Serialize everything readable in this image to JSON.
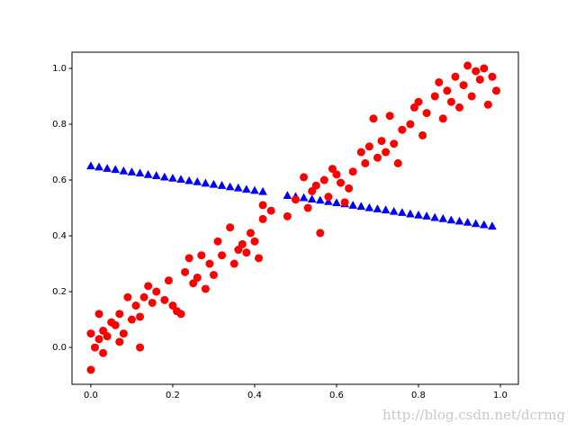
{
  "chart_data": {
    "type": "scatter",
    "annotation": "http://blog.csdn.net/dcrmg",
    "xlim": [
      -0.046,
      1.044
    ],
    "ylim": [
      -0.132,
      1.058
    ],
    "xticks": [
      {
        "value": 0,
        "label": "0.0"
      },
      0.2,
      0.4,
      0.6,
      0.8,
      {
        "value": 1,
        "label": "1.0"
      }
    ],
    "yticks": [
      {
        "value": 0,
        "label": "0.0"
      },
      0.2,
      0.4,
      0.6,
      0.8,
      {
        "value": 1,
        "label": "1.0"
      }
    ],
    "grid": false,
    "series": [
      {
        "marker": "triangle",
        "color": "#0000ff",
        "x": [
          0,
          0.02,
          0.04,
          0.06,
          0.08,
          0.1,
          0.12,
          0.14,
          0.16,
          0.18,
          0.2,
          0.22,
          0.24,
          0.26,
          0.28,
          0.3,
          0.32,
          0.34,
          0.36,
          0.38,
          0.4,
          0.42,
          0.48,
          0.5,
          0.52,
          0.54,
          0.56,
          0.58,
          0.6,
          0.62,
          0.64,
          0.66,
          0.68,
          0.7,
          0.72,
          0.74,
          0.76,
          0.78,
          0.8,
          0.82,
          0.84,
          0.86,
          0.88,
          0.9,
          0.92,
          0.94,
          0.96,
          0.98
        ],
        "values": [
          0.65,
          0.646,
          0.641,
          0.637,
          0.632,
          0.628,
          0.624,
          0.619,
          0.615,
          0.61,
          0.606,
          0.602,
          0.597,
          0.593,
          0.588,
          0.584,
          0.58,
          0.575,
          0.571,
          0.566,
          0.562,
          0.558,
          0.544,
          0.54,
          0.536,
          0.531,
          0.527,
          0.522,
          0.518,
          0.514,
          0.509,
          0.505,
          0.5,
          0.496,
          0.492,
          0.487,
          0.483,
          0.478,
          0.474,
          0.47,
          0.465,
          0.461,
          0.456,
          0.452,
          0.448,
          0.443,
          0.439,
          0.434
        ]
      },
      {
        "marker": "circle",
        "color": "#ff0000",
        "x": [
          0,
          0,
          0.01,
          0.02,
          0.02,
          0.03,
          0.03,
          0.04,
          0.05,
          0.06,
          0.07,
          0.07,
          0.08,
          0.09,
          0.1,
          0.11,
          0.12,
          0.12,
          0.13,
          0.14,
          0.15,
          0.16,
          0.18,
          0.19,
          0.2,
          0.21,
          0.22,
          0.23,
          0.24,
          0.25,
          0.26,
          0.27,
          0.28,
          0.29,
          0.3,
          0.31,
          0.32,
          0.34,
          0.35,
          0.36,
          0.37,
          0.38,
          0.39,
          0.4,
          0.41,
          0.42,
          0.42,
          0.44,
          0.48,
          0.5,
          0.52,
          0.53,
          0.54,
          0.55,
          0.56,
          0.57,
          0.58,
          0.59,
          0.6,
          0.61,
          0.62,
          0.63,
          0.64,
          0.66,
          0.67,
          0.68,
          0.69,
          0.7,
          0.71,
          0.72,
          0.73,
          0.74,
          0.75,
          0.76,
          0.78,
          0.79,
          0.8,
          0.81,
          0.82,
          0.84,
          0.85,
          0.86,
          0.87,
          0.88,
          0.89,
          0.9,
          0.91,
          0.92,
          0.93,
          0.94,
          0.95,
          0.96,
          0.97,
          0.98,
          0.99
        ],
        "values": [
          0.05,
          -0.08,
          0,
          0.12,
          0.03,
          0.06,
          -0.02,
          0.04,
          0.09,
          0.08,
          0.02,
          0.12,
          0.05,
          0.18,
          0.1,
          0.15,
          0,
          0.11,
          0.18,
          0.22,
          0.16,
          0.2,
          0.17,
          0.24,
          0.15,
          0.13,
          0.12,
          0.27,
          0.32,
          0.23,
          0.25,
          0.33,
          0.21,
          0.3,
          0.26,
          0.38,
          0.33,
          0.43,
          0.3,
          0.35,
          0.37,
          0.34,
          0.41,
          0.38,
          0.32,
          0.46,
          0.51,
          0.49,
          0.47,
          0.53,
          0.61,
          0.5,
          0.56,
          0.58,
          0.41,
          0.6,
          0.54,
          0.64,
          0.62,
          0.59,
          0.52,
          0.57,
          0.63,
          0.7,
          0.66,
          0.72,
          0.82,
          0.68,
          0.74,
          0.7,
          0.83,
          0.73,
          0.66,
          0.78,
          0.8,
          0.86,
          0.88,
          0.76,
          0.84,
          0.9,
          0.95,
          0.82,
          0.92,
          0.88,
          0.97,
          0.86,
          0.94,
          1.01,
          0.9,
          0.99,
          0.96,
          1.0,
          0.87,
          0.97,
          0.92
        ]
      }
    ]
  }
}
